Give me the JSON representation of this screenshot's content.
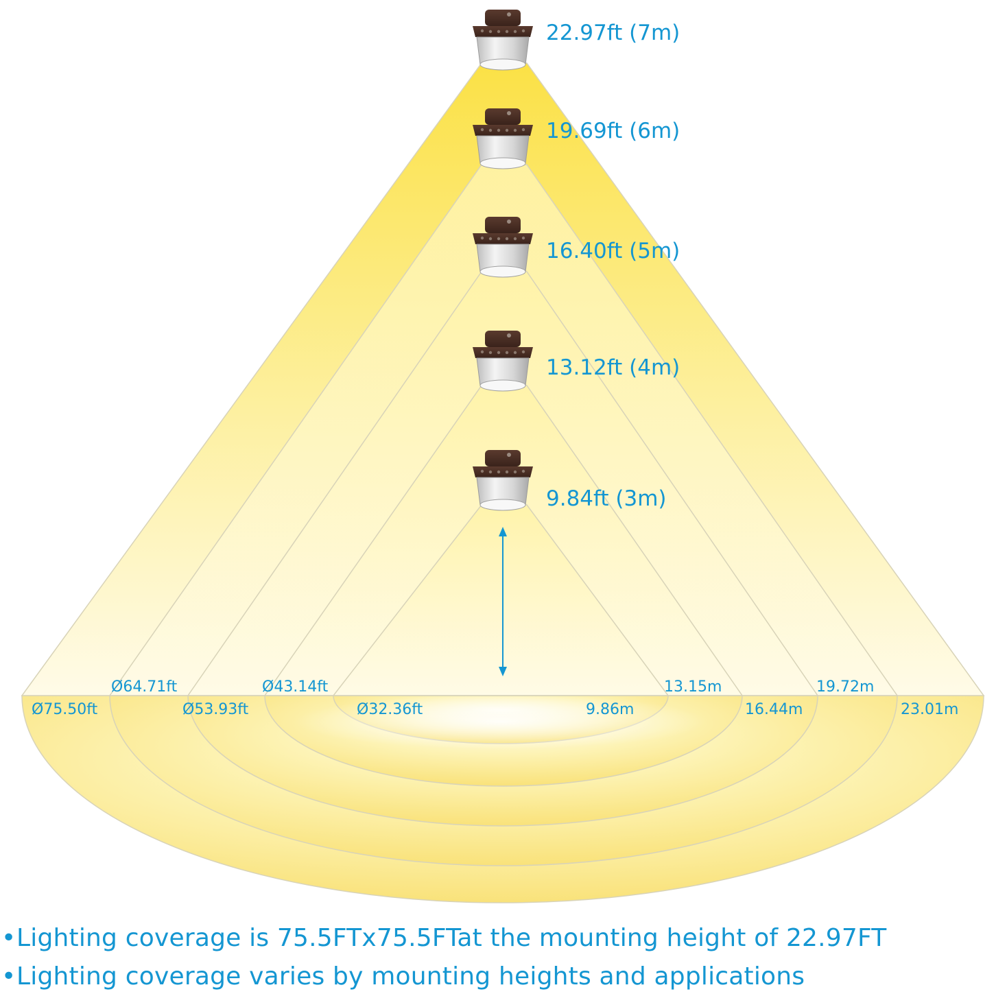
{
  "colors": {
    "accent": "#1496d2",
    "beam_core": "#fbe146",
    "beam_edge": "#fffbe8",
    "cone_outline": "#d8d3b8",
    "lamp_body": "#4a2e24",
    "lamp_lens": "#e6e6e6"
  },
  "heights": [
    {
      "label": "22.97ft (7m)",
      "icon": "lamp-icon"
    },
    {
      "label": "19.69ft (6m)",
      "icon": "lamp-icon"
    },
    {
      "label": "16.40ft (5m)",
      "icon": "lamp-icon"
    },
    {
      "label": "13.12ft (4m)",
      "icon": "lamp-icon"
    },
    {
      "label": "9.84ft (3m)",
      "icon": "lamp-icon"
    }
  ],
  "coverage_feet": [
    "Ø75.50ft",
    "Ø64.71ft",
    "Ø53.93ft",
    "Ø43.14ft",
    "Ø32.36ft"
  ],
  "coverage_meters": [
    "23.01m",
    "19.72m",
    "16.44m",
    "13.15m",
    "9.86m"
  ],
  "height_arrow_icon": "double-arrow-icon",
  "notes": [
    "Lighting coverage is 75.5FTx75.5FTat the mounting height of 22.97FT",
    "Lighting coverage varies by mounting heights and applications"
  ],
  "bullet_glyph": "•"
}
